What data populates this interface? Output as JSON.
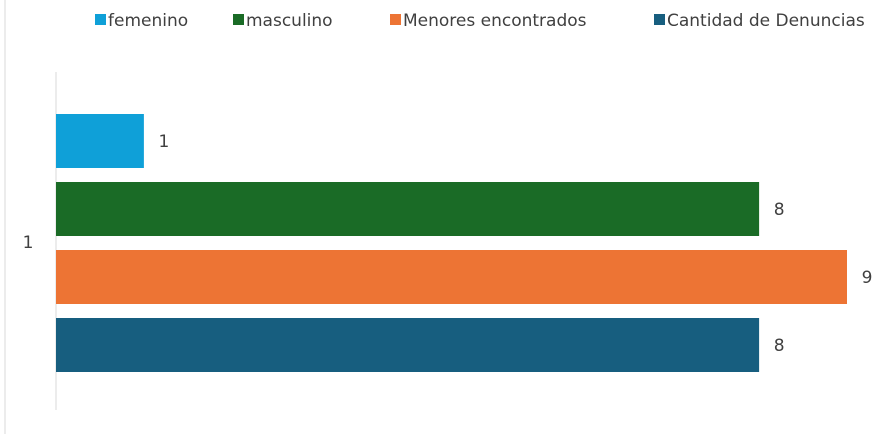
{
  "chart_data": {
    "type": "bar",
    "orientation": "horizontal",
    "categories": [
      "1"
    ],
    "series": [
      {
        "name": "femenino",
        "color": "#0fa0d8",
        "values": [
          1
        ]
      },
      {
        "name": "masculino",
        "color": "#1a6b26",
        "values": [
          8
        ]
      },
      {
        "name": "Menores encontrados",
        "color": "#ed7434",
        "values": [
          9
        ]
      },
      {
        "name": "Cantidad de Denuncias",
        "color": "#175e7f",
        "values": [
          8
        ]
      }
    ],
    "legend": "top"
  }
}
